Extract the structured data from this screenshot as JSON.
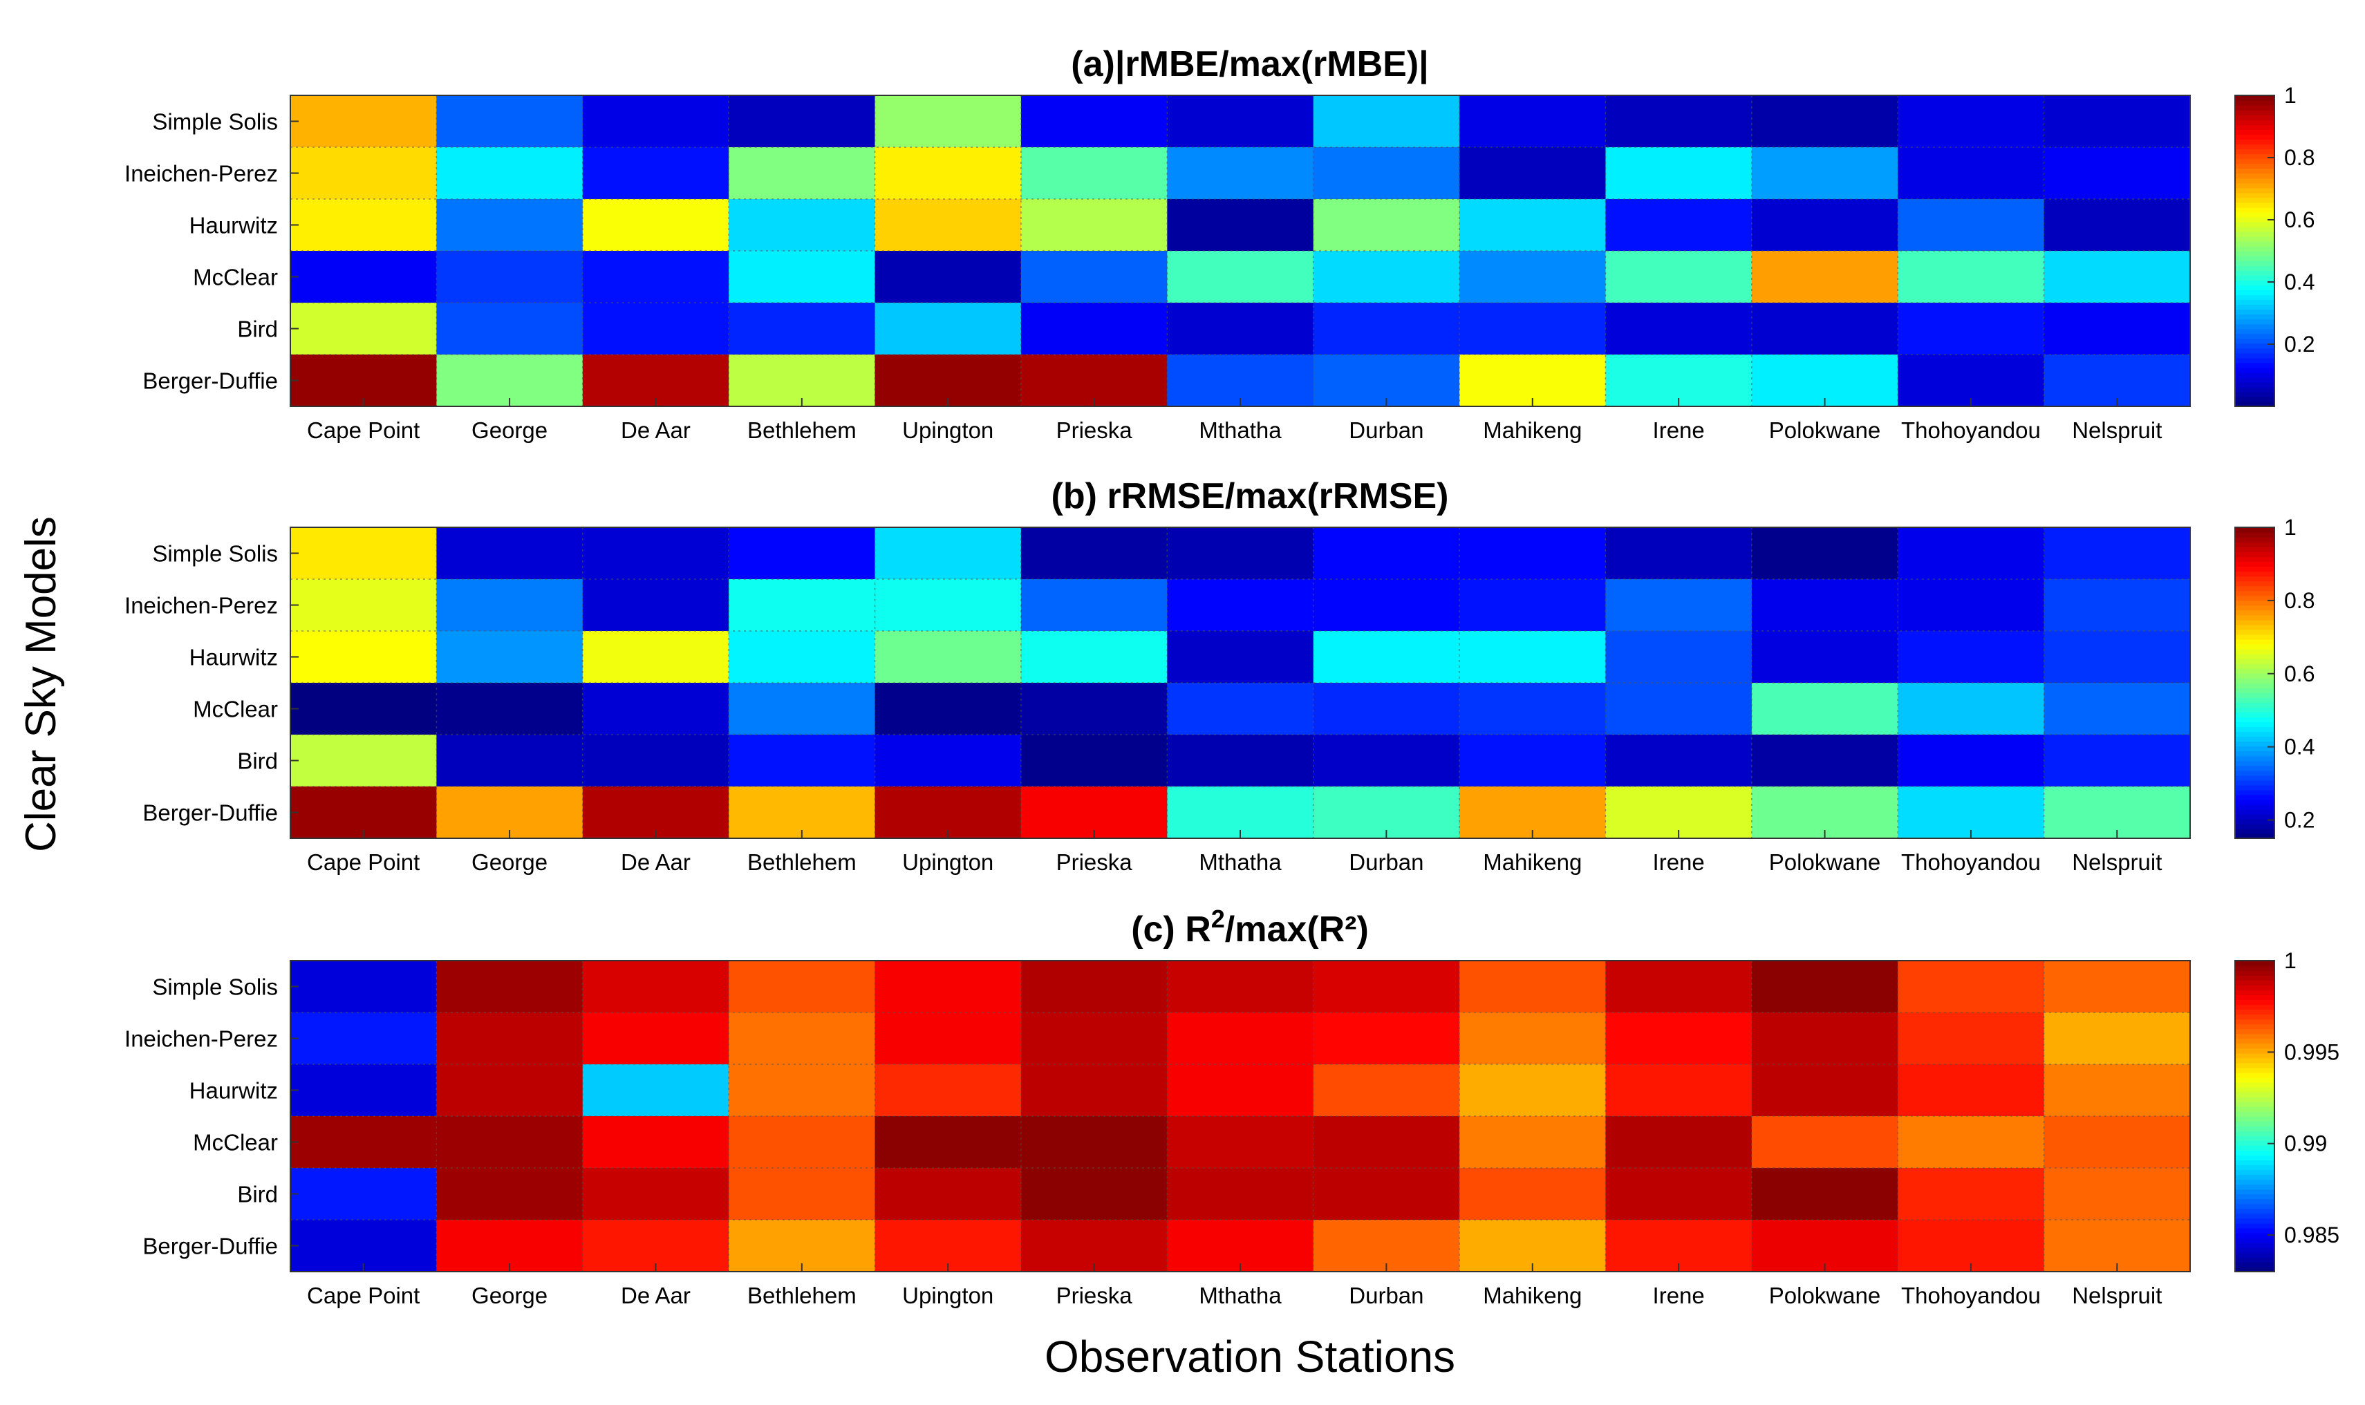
{
  "figure": {
    "ylabel": "Clear Sky Models",
    "xlabel": "Observation Stations"
  },
  "chart_data": [
    {
      "type": "heatmap",
      "title_main": "(a)|rMBE/max(rMBE)|",
      "title_sup": "",
      "title_tail": "",
      "xlabel": "Observation Stations",
      "ylabel": "Clear Sky Models",
      "rows": [
        "Simple Solis",
        "Ineichen-Perez",
        "Haurwitz",
        "McClear",
        "Bird",
        "Berger-Duffie"
      ],
      "columns": [
        "Cape Point",
        "George",
        "De Aar",
        "Bethlehem",
        "Upington",
        "Prieska",
        "Mthatha",
        "Durban",
        "Mahikeng",
        "Irene",
        "Polokwane",
        "Thohoyandou",
        "Nelspruit"
      ],
      "values": [
        [
          0.7,
          0.22,
          0.1,
          0.06,
          0.52,
          0.12,
          0.08,
          0.32,
          0.1,
          0.06,
          0.04,
          0.1,
          0.08
        ],
        [
          0.66,
          0.36,
          0.14,
          0.5,
          0.64,
          0.46,
          0.26,
          0.24,
          0.06,
          0.36,
          0.28,
          0.1,
          0.12
        ],
        [
          0.64,
          0.24,
          0.62,
          0.34,
          0.67,
          0.55,
          0.03,
          0.5,
          0.34,
          0.14,
          0.08,
          0.22,
          0.06
        ],
        [
          0.12,
          0.18,
          0.14,
          0.36,
          0.05,
          0.22,
          0.44,
          0.34,
          0.26,
          0.44,
          0.72,
          0.44,
          0.34
        ],
        [
          0.58,
          0.2,
          0.14,
          0.16,
          0.32,
          0.12,
          0.08,
          0.16,
          0.16,
          0.09,
          0.08,
          0.14,
          0.12
        ],
        [
          0.98,
          0.5,
          0.95,
          0.56,
          0.98,
          0.96,
          0.2,
          0.22,
          0.62,
          0.4,
          0.36,
          0.09,
          0.18
        ]
      ],
      "colorbar": {
        "min": 0.0,
        "max": 1.0,
        "ticks": [
          0.2,
          0.4,
          0.6,
          0.8,
          1.0
        ],
        "tick_labels": [
          "0.2",
          "0.4",
          "0.6",
          "0.8",
          "1"
        ]
      }
    },
    {
      "type": "heatmap",
      "title_main": "(b) rRMSE/max(rRMSE)",
      "title_sup": "",
      "title_tail": "",
      "xlabel": "Observation Stations",
      "ylabel": "Clear Sky Models",
      "rows": [
        "Simple Solis",
        "Ineichen-Perez",
        "Haurwitz",
        "McClear",
        "Bird",
        "Berger-Duffie"
      ],
      "columns": [
        "Cape Point",
        "George",
        "De Aar",
        "Bethlehem",
        "Upington",
        "Prieska",
        "Mthatha",
        "Durban",
        "Mahikeng",
        "Irene",
        "Polokwane",
        "Thohoyandou",
        "Nelspruit"
      ],
      "values": [
        [
          0.7,
          0.22,
          0.22,
          0.26,
          0.44,
          0.18,
          0.19,
          0.26,
          0.26,
          0.2,
          0.16,
          0.24,
          0.28
        ],
        [
          0.66,
          0.36,
          0.22,
          0.48,
          0.48,
          0.34,
          0.26,
          0.26,
          0.27,
          0.34,
          0.24,
          0.24,
          0.31
        ],
        [
          0.68,
          0.38,
          0.67,
          0.46,
          0.56,
          0.48,
          0.21,
          0.46,
          0.46,
          0.32,
          0.23,
          0.27,
          0.3
        ],
        [
          0.15,
          0.16,
          0.22,
          0.36,
          0.16,
          0.18,
          0.3,
          0.29,
          0.3,
          0.32,
          0.53,
          0.42,
          0.34
        ],
        [
          0.63,
          0.2,
          0.2,
          0.27,
          0.24,
          0.16,
          0.19,
          0.21,
          0.27,
          0.21,
          0.18,
          0.25,
          0.28
        ],
        [
          0.98,
          0.76,
          0.96,
          0.74,
          0.96,
          0.9,
          0.5,
          0.52,
          0.76,
          0.65,
          0.56,
          0.44,
          0.54
        ]
      ],
      "colorbar": {
        "min": 0.15,
        "max": 1.0,
        "ticks": [
          0.2,
          0.4,
          0.6,
          0.8,
          1.0
        ],
        "tick_labels": [
          "0.2",
          "0.4",
          "0.6",
          "0.8",
          "1"
        ]
      }
    },
    {
      "type": "heatmap",
      "title_main": "(c) R",
      "title_sup": "2",
      "title_tail": "/max(R²)",
      "xlabel": "Observation Stations",
      "ylabel": "Clear Sky Models",
      "rows": [
        "Simple Solis",
        "Ineichen-Perez",
        "Haurwitz",
        "McClear",
        "Bird",
        "Berger-Duffie"
      ],
      "columns": [
        "Cape Point",
        "George",
        "De Aar",
        "Bethlehem",
        "Upington",
        "Prieska",
        "Mthatha",
        "Durban",
        "Mahikeng",
        "Irene",
        "Polokwane",
        "Thohoyandou",
        "Nelspruit"
      ],
      "values": [
        [
          0.9845,
          0.9995,
          0.9985,
          0.9965,
          0.998,
          0.9992,
          0.9988,
          0.9985,
          0.9965,
          0.9988,
          0.9998,
          0.9968,
          0.9962
        ],
        [
          0.9855,
          0.999,
          0.998,
          0.996,
          0.998,
          0.999,
          0.998,
          0.9978,
          0.9958,
          0.9978,
          0.999,
          0.9972,
          0.995
        ],
        [
          0.9845,
          0.999,
          0.9885,
          0.996,
          0.9972,
          0.999,
          0.998,
          0.9966,
          0.995,
          0.9975,
          0.999,
          0.9975,
          0.9958
        ],
        [
          0.9995,
          0.9995,
          0.998,
          0.9965,
          0.9998,
          0.9998,
          0.9988,
          0.999,
          0.9958,
          0.9992,
          0.9966,
          0.9958,
          0.9964
        ],
        [
          0.9855,
          0.9995,
          0.9988,
          0.9965,
          0.999,
          0.9998,
          0.999,
          0.999,
          0.9966,
          0.999,
          0.9998,
          0.9973,
          0.9962
        ],
        [
          0.9845,
          0.998,
          0.9975,
          0.9952,
          0.9975,
          0.9988,
          0.998,
          0.9962,
          0.995,
          0.9975,
          0.9982,
          0.9975,
          0.996
        ]
      ],
      "colorbar": {
        "min": 0.983,
        "max": 1.0,
        "ticks": [
          0.985,
          0.99,
          0.995,
          1.0
        ],
        "tick_labels": [
          "0.985",
          "0.99",
          "0.995",
          "1"
        ]
      }
    }
  ]
}
